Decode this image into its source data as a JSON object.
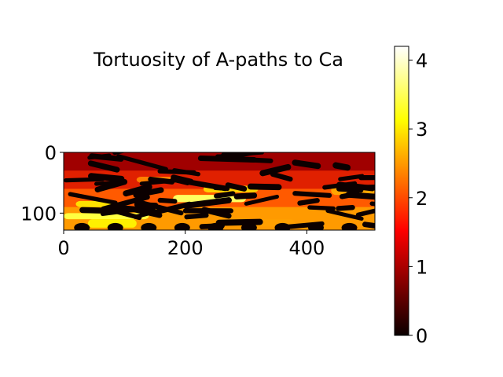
{
  "chart_data": {
    "type": "heatmap",
    "title": "Tortuosity of A-paths to Ca",
    "xlabel": "",
    "ylabel": "",
    "image_width": 512,
    "image_height": 128,
    "xlim": [
      0,
      512
    ],
    "ylim": [
      128,
      0
    ],
    "x_ticks": [
      0,
      200,
      400
    ],
    "y_ticks": [
      0,
      100
    ],
    "x_tick_labels": [
      "0",
      "200",
      "400"
    ],
    "y_tick_labels": [
      "0",
      "100"
    ],
    "colormap": "hot",
    "colorbar": {
      "range": [
        0,
        4.2
      ],
      "ticks": [
        0,
        1,
        2,
        3,
        4
      ],
      "tick_labels": [
        "0",
        "1",
        "2",
        "3",
        "4"
      ]
    },
    "colors": {
      "cmap_black": "#0b0000",
      "cmap_red": "#ff0000",
      "cmap_yellow": "#ffff00",
      "cmap_white": "#ffffff"
    }
  }
}
